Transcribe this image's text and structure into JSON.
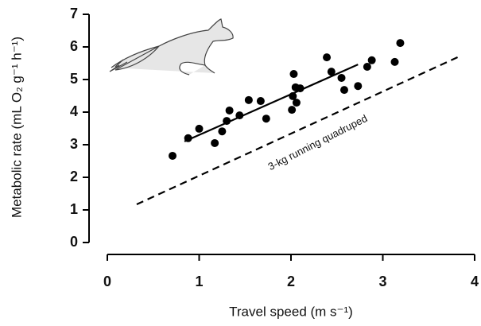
{
  "chart_data": {
    "type": "scatter",
    "x_label": "Travel speed (m s⁻¹)",
    "y_label": "Metabolic rate (mL O₂ g⁻¹ h⁻¹)",
    "annotation": "3-kg running quadruped",
    "x": [
      0.71,
      0.88,
      1.0,
      1.17,
      1.25,
      1.3,
      1.33,
      1.44,
      1.54,
      1.67,
      1.73,
      2.01,
      2.02,
      2.03,
      2.05,
      2.06,
      2.1,
      2.39,
      2.44,
      2.55,
      2.58,
      2.73,
      2.83,
      2.88,
      3.13,
      3.19
    ],
    "values": [
      2.66,
      3.2,
      3.49,
      3.05,
      3.41,
      3.73,
      4.05,
      3.9,
      4.37,
      4.34,
      3.8,
      4.07,
      4.49,
      5.17,
      4.76,
      4.29,
      4.73,
      5.68,
      5.24,
      5.05,
      4.68,
      4.8,
      5.39,
      5.59,
      5.54,
      6.12
    ],
    "color": "#000000",
    "lines": [
      {
        "x": [
          0.84,
          2.73
        ],
        "y": [
          3.1,
          5.46
        ],
        "style": "solid"
      },
      {
        "x": [
          0.32,
          3.85
        ],
        "y": [
          1.17,
          5.73
        ],
        "style": "dashed"
      }
    ],
    "xlim": [
      0,
      4
    ],
    "ylim": [
      0,
      7
    ],
    "xticks": [
      0,
      1,
      2,
      3,
      4
    ],
    "yticks": [
      0,
      1,
      2,
      3,
      4,
      5,
      6,
      7
    ]
  }
}
